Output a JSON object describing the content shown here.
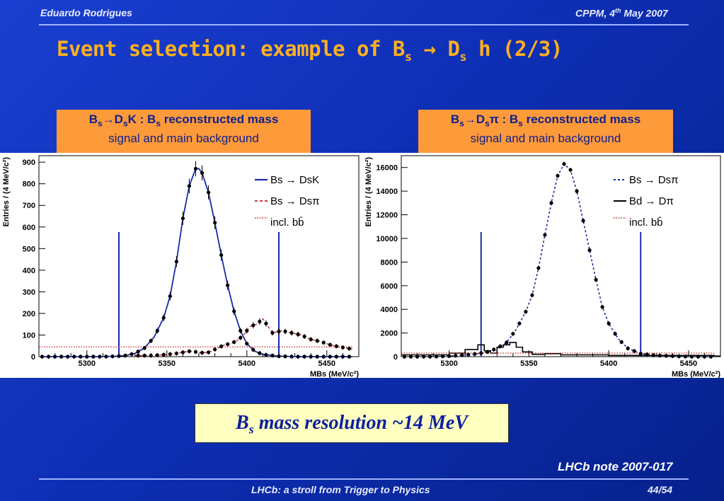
{
  "header": {
    "author": "Eduardo Rodrigues",
    "date_place": "CPPM, 4",
    "date_sup": "th",
    "date_rest": " May 2007"
  },
  "title": {
    "main": "Event selection: example of B",
    "sub1": "s",
    "arrow": " → D",
    "sub2": "s",
    "tail": " h (2/3)"
  },
  "left_caption": {
    "line1_pre": "B",
    "line1_sub1": "s",
    "line1_mid": "→D",
    "line1_sub2": "s",
    "line1_k": "K : B",
    "line1_sub3": "s",
    "line1_post": " reconstructed mass",
    "line2": "signal and main background"
  },
  "right_caption": {
    "line1_pre": "B",
    "line1_sub1": "s",
    "line1_mid": "→D",
    "line1_sub2": "s",
    "line1_k": "π : B",
    "line1_sub3": "s",
    "line1_post": " reconstructed mass",
    "line2": "signal and main background"
  },
  "resolution_box": {
    "pre": "B",
    "sub": "s",
    "post": " mass resolution ~14 MeV"
  },
  "note": "LHCb note 2007-017",
  "footer": {
    "center": "LHCb: a stroll from Trigger to Physics",
    "page": "44/54"
  },
  "chart_data": [
    {
      "type": "line",
      "ylabel": "Entries / (4 MeV/c²)",
      "xlabel": "M_Bs (MeV/c²)",
      "xlim": [
        5270,
        5470
      ],
      "ylim": [
        0,
        930
      ],
      "xticks": [
        5300,
        5350,
        5400,
        5450
      ],
      "yticks": [
        0,
        100,
        200,
        300,
        400,
        500,
        600,
        700,
        800,
        900
      ],
      "cut_lines": [
        5320,
        5420
      ],
      "legend": [
        "B_s → D_sK",
        "B_s → D_sπ",
        "incl. bb̄"
      ],
      "series": [
        {
          "name": "B_s → D_sK",
          "x": [
            5272,
            5280,
            5290,
            5300,
            5310,
            5318,
            5324,
            5330,
            5336,
            5342,
            5348,
            5352,
            5356,
            5360,
            5364,
            5368,
            5370,
            5372,
            5376,
            5380,
            5384,
            5388,
            5392,
            5396,
            5400,
            5405,
            5410,
            5420,
            5430,
            5440,
            5450,
            5460,
            5466
          ],
          "values": [
            0,
            0,
            0,
            0,
            0,
            2,
            5,
            15,
            40,
            90,
            180,
            280,
            440,
            640,
            790,
            870,
            870,
            850,
            760,
            620,
            470,
            330,
            210,
            120,
            60,
            25,
            10,
            2,
            0,
            0,
            0,
            0,
            0
          ]
        },
        {
          "name": "B_s → D_sπ",
          "x": [
            5330,
            5340,
            5350,
            5356,
            5360,
            5364,
            5368,
            5372,
            5376,
            5382,
            5386,
            5390,
            5394,
            5398,
            5402,
            5406,
            5410,
            5416,
            5422,
            5428,
            5434,
            5440,
            5446,
            5452,
            5458,
            5466
          ],
          "values": [
            5,
            5,
            10,
            15,
            20,
            25,
            22,
            18,
            20,
            40,
            55,
            60,
            75,
            100,
            140,
            150,
            175,
            110,
            120,
            110,
            100,
            80,
            70,
            55,
            45,
            35
          ]
        },
        {
          "name": "incl. bb̄",
          "x": [
            5270,
            5466
          ],
          "values": [
            45,
            45
          ]
        }
      ]
    },
    {
      "type": "line",
      "ylabel": "Entries / (4 MeV/c²)",
      "xlabel": "M_Bs (MeV/c²)",
      "xlim": [
        5270,
        5470
      ],
      "ylim": [
        0,
        17000
      ],
      "xticks": [
        5300,
        5350,
        5400,
        5450
      ],
      "yticks": [
        0,
        2000,
        4000,
        6000,
        8000,
        10000,
        12000,
        14000,
        16000
      ],
      "cut_lines": [
        5320,
        5420
      ],
      "legend": [
        "B_s → D_sπ",
        "B_d → Dπ",
        "incl. bb̄"
      ],
      "series": [
        {
          "name": "B_s → D_sπ",
          "x": [
            5280,
            5290,
            5300,
            5310,
            5318,
            5324,
            5330,
            5336,
            5342,
            5348,
            5352,
            5356,
            5360,
            5364,
            5368,
            5372,
            5376,
            5380,
            5384,
            5388,
            5392,
            5396,
            5400,
            5406,
            5412,
            5420,
            5430,
            5440,
            5450,
            5466
          ],
          "values": [
            0,
            0,
            50,
            150,
            250,
            400,
            700,
            1200,
            2300,
            3800,
            5200,
            7500,
            10300,
            13000,
            15300,
            16300,
            15800,
            14000,
            11500,
            9000,
            6500,
            4200,
            2800,
            1500,
            700,
            250,
            100,
            50,
            0,
            0
          ]
        },
        {
          "name": "B_d → Dπ",
          "x": [
            5270,
            5300,
            5310,
            5318,
            5322,
            5326,
            5330,
            5334,
            5338,
            5342,
            5346,
            5352,
            5360,
            5370,
            5400,
            5466
          ],
          "values": [
            150,
            300,
            600,
            1000,
            500,
            300,
            800,
            1000,
            1200,
            800,
            400,
            200,
            250,
            150,
            100,
            50
          ]
        },
        {
          "name": "incl. bb̄",
          "x": [
            5270,
            5466
          ],
          "values": [
            300,
            300
          ]
        }
      ]
    }
  ]
}
